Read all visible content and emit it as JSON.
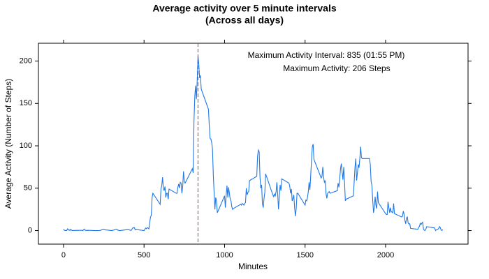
{
  "chart_data": {
    "type": "line",
    "title": "Average activity over 5 minute intervals",
    "subtitle": "(Across all days)",
    "x_label": "Minutes",
    "y_label": "Average Activity (Number of Steps)",
    "annotations": [
      "Maximum Activity Interval: 835 (01:55 PM)",
      "Maximum Activity: 206 Steps"
    ],
    "reference_line": {
      "x": 835,
      "color": "#c0392b"
    },
    "color": "#1f78e8",
    "xlim": [
      -156,
      2512
    ],
    "ylim": [
      -16,
      221
    ],
    "xticks": [
      0,
      500,
      1000,
      1500,
      2000
    ],
    "yticks": [
      0,
      50,
      100,
      150,
      200
    ],
    "x": [
      0,
      5,
      10,
      15,
      20,
      25,
      30,
      35,
      40,
      45,
      50,
      55,
      100,
      115,
      120,
      125,
      130,
      135,
      150,
      200,
      225,
      250,
      255,
      300,
      330,
      335,
      345,
      350,
      400,
      415,
      420,
      430,
      440,
      445,
      455,
      500,
      510,
      515,
      520,
      525,
      530,
      540,
      545,
      550,
      555,
      600,
      605,
      610,
      615,
      620,
      625,
      630,
      635,
      640,
      645,
      650,
      655,
      700,
      705,
      710,
      715,
      720,
      725,
      730,
      735,
      740,
      745,
      750,
      755,
      800,
      805,
      810,
      815,
      820,
      825,
      830,
      835,
      840,
      845,
      850,
      855,
      900,
      905,
      910,
      915,
      920,
      925,
      930,
      935,
      940,
      945,
      950,
      955,
      1000,
      1005,
      1010,
      1015,
      1020,
      1025,
      1030,
      1035,
      1040,
      1045,
      1050,
      1055,
      1100,
      1105,
      1110,
      1115,
      1120,
      1125,
      1130,
      1135,
      1140,
      1145,
      1150,
      1155,
      1200,
      1205,
      1210,
      1215,
      1220,
      1225,
      1230,
      1235,
      1240,
      1245,
      1250,
      1255,
      1300,
      1305,
      1310,
      1315,
      1320,
      1325,
      1330,
      1335,
      1340,
      1345,
      1350,
      1355,
      1400,
      1405,
      1410,
      1415,
      1420,
      1425,
      1430,
      1435,
      1440,
      1445,
      1450,
      1455,
      1500,
      1505,
      1510,
      1515,
      1520,
      1525,
      1530,
      1535,
      1540,
      1545,
      1550,
      1555,
      1600,
      1605,
      1610,
      1615,
      1620,
      1625,
      1630,
      1635,
      1640,
      1645,
      1650,
      1655,
      1700,
      1705,
      1710,
      1715,
      1720,
      1725,
      1730,
      1735,
      1740,
      1745,
      1750,
      1755,
      1800,
      1805,
      1810,
      1815,
      1820,
      1825,
      1830,
      1835,
      1840,
      1845,
      1850,
      1855,
      1900,
      1905,
      1910,
      1915,
      1920,
      1925,
      1930,
      1935,
      1940,
      1945,
      1950,
      1955,
      2000,
      2005,
      2010,
      2015,
      2020,
      2025,
      2030,
      2035,
      2040,
      2045,
      2050,
      2055,
      2100,
      2105,
      2110,
      2115,
      2120,
      2125,
      2130,
      2135,
      2140,
      2145,
      2150,
      2155,
      2200,
      2205,
      2210,
      2215,
      2220,
      2225,
      2230,
      2235,
      2240,
      2245,
      2250,
      2255,
      2300,
      2305,
      2310,
      2315,
      2320,
      2325,
      2330,
      2335,
      2340,
      2345,
      2350,
      2355
    ],
    "values": [
      1.7,
      0.3,
      0.1,
      0.2,
      0.1,
      2.1,
      0.5,
      0.9,
      0,
      1.5,
      0.3,
      0.1,
      0.3,
      0.3,
      0,
      1.1,
      1.8,
      0.2,
      0.3,
      0,
      0.1,
      1.5,
      0.9,
      0,
      1.6,
      0.7,
      0.1,
      0,
      1.2,
      0.4,
      0.3,
      3,
      3.5,
      0.8,
      1.1,
      0,
      3,
      2.2,
      3.3,
      3,
      2,
      16,
      18,
      39,
      44,
      31,
      49,
      53,
      63,
      50,
      47,
      52,
      39,
      44,
      44,
      37,
      49,
      44,
      44,
      51,
      55,
      50,
      57,
      56,
      44,
      52,
      70,
      58,
      56,
      73,
      68,
      129,
      158,
      171,
      155,
      177,
      206,
      196,
      180,
      183,
      167,
      143,
      124,
      109,
      108,
      104,
      96,
      66,
      45,
      25,
      39,
      35,
      21,
      41,
      27,
      42,
      53,
      39,
      51,
      44,
      37,
      35,
      28,
      25,
      26,
      31,
      30,
      32,
      31,
      30,
      32,
      33,
      50,
      42,
      45,
      46,
      59,
      64,
      88,
      95,
      93,
      63,
      50,
      54,
      32,
      27,
      38,
      45,
      67,
      42,
      40,
      43,
      41,
      46,
      57,
      43,
      25,
      40,
      54,
      47,
      61,
      56,
      52,
      44,
      49,
      35,
      38,
      42,
      27,
      17,
      26,
      44,
      44,
      30,
      36,
      35,
      39,
      46,
      57,
      48,
      65,
      83,
      99,
      102,
      84,
      62,
      64,
      75,
      63,
      57,
      59,
      44,
      38,
      44,
      45,
      46,
      44,
      47,
      56,
      51,
      61,
      73,
      79,
      69,
      60,
      75,
      57,
      35,
      37,
      41,
      58,
      75,
      85,
      59,
      68,
      78,
      74,
      85,
      99,
      86,
      85,
      85,
      78,
      58,
      53,
      36,
      21,
      27,
      40,
      30,
      26,
      46,
      33,
      20,
      19,
      19,
      34,
      27,
      21,
      27,
      22,
      22,
      21,
      32,
      20,
      16,
      17,
      23,
      19,
      12,
      8,
      15,
      16,
      9,
      7.8,
      8,
      2.6,
      1.5,
      3.7,
      4.8,
      8.5,
      7.1,
      8.7,
      9.8,
      2.2,
      0.3,
      0.1,
      1.6,
      4.6,
      3.3,
      3,
      0,
      0.8,
      1,
      1.6,
      2.6,
      4.7,
      3.3,
      0.6,
      0.2,
      1.1
    ]
  }
}
